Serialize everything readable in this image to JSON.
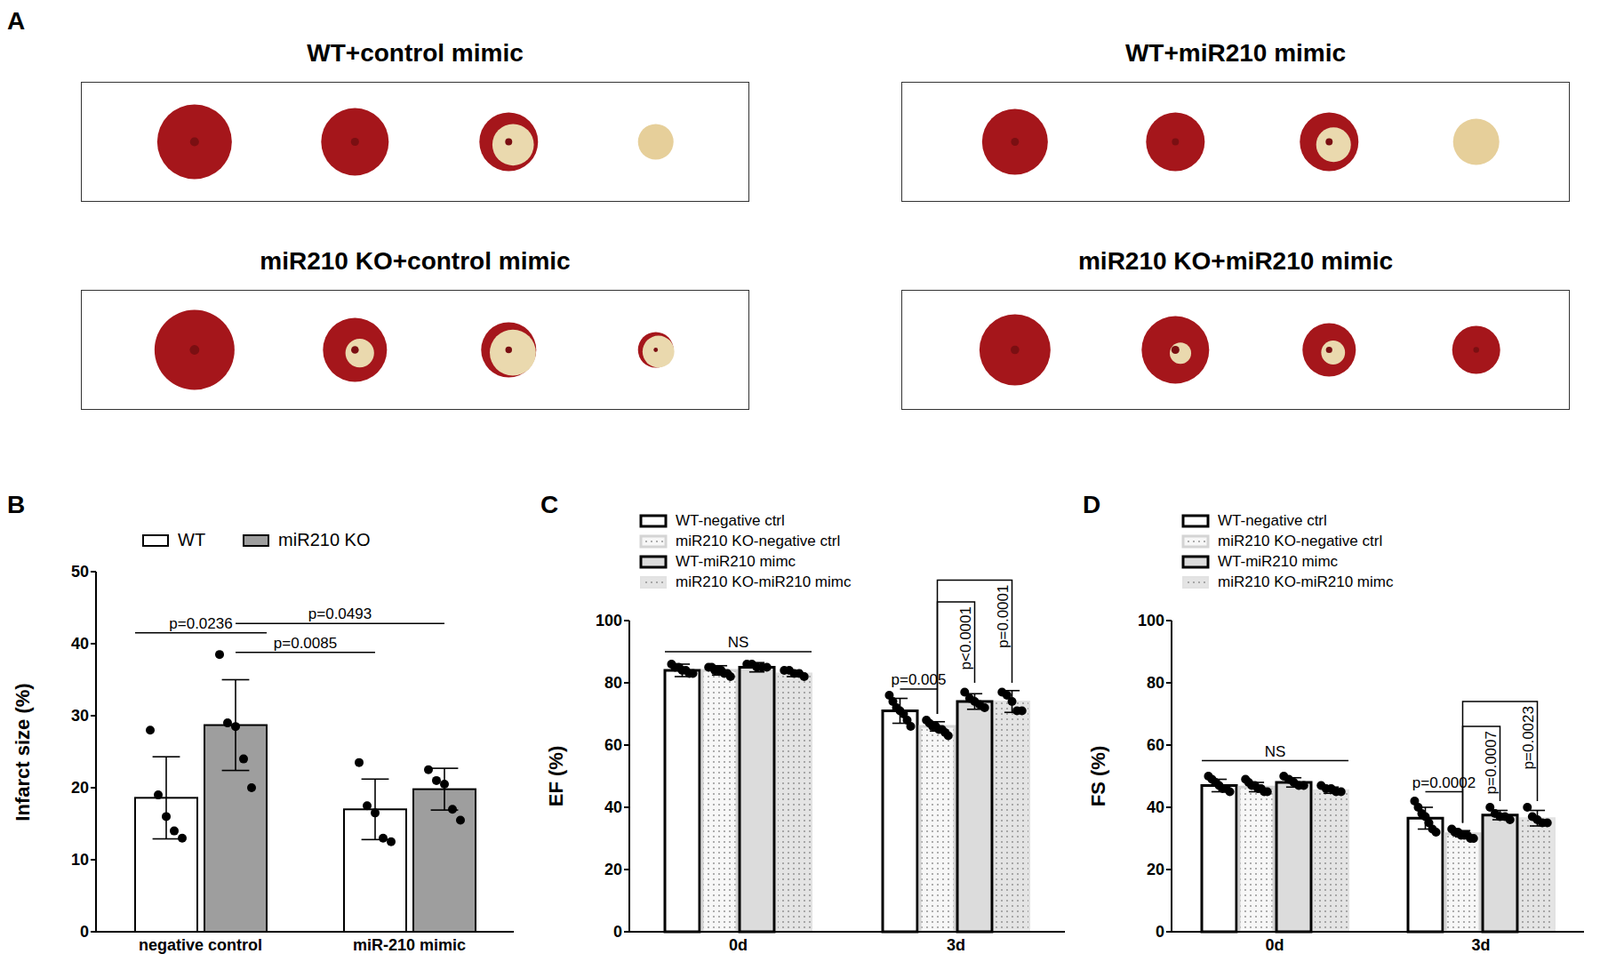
{
  "panel_A": {
    "panel_label": "A",
    "images": [
      {
        "title": "WT+control mimic"
      },
      {
        "title": "WT+miR210 mimic"
      },
      {
        "title": "miR210 KO+control mimic"
      },
      {
        "title": "miR210 KO+miR210 mimic"
      }
    ]
  },
  "chart_data": [
    {
      "panel_label": "B",
      "type": "bar",
      "y_label": "Infarct size (%)",
      "categories": [
        "negative control",
        "miR-210 mimic"
      ],
      "ylim": [
        0,
        50
      ],
      "yticks": [
        0,
        10,
        20,
        30,
        40,
        50
      ],
      "legend": "top",
      "series": [
        {
          "name": "WT",
          "color": "#ffffff",
          "values": [
            18.6,
            17.0
          ],
          "errors": [
            5.7,
            4.2
          ],
          "points": [
            [
              28,
              19,
              16,
              14,
              13
            ],
            [
              23.5,
              17.5,
              16.5,
              13,
              12.5
            ]
          ]
        },
        {
          "name": "miR210 KO",
          "color": "#9e9e9e",
          "values": [
            28.7,
            19.8
          ],
          "errors": [
            6.3,
            2.9
          ],
          "points": [
            [
              38.5,
              29,
              28.5,
              24,
              20
            ],
            [
              22.5,
              21,
              20.5,
              17,
              15.5
            ]
          ]
        }
      ],
      "annotations": [
        "p=0.0236",
        "p=0.0085",
        "p=0.0493"
      ]
    },
    {
      "panel_label": "C",
      "type": "bar",
      "y_label": "EF (%)",
      "categories": [
        "0d",
        "3d"
      ],
      "ylim": [
        0,
        100
      ],
      "yticks": [
        0,
        20,
        40,
        60,
        80,
        100
      ],
      "legend": "top",
      "series": [
        {
          "name": "WT-negative ctrl",
          "color": "#ffffff",
          "values": [
            84,
            71
          ],
          "errors": [
            2,
            4
          ],
          "points": [
            [
              86,
              85,
              85,
              84,
              84,
              83,
              83
            ],
            [
              76,
              74,
              72,
              71,
              70,
              68,
              66
            ]
          ]
        },
        {
          "name": "miR210 KO-negative ctrl",
          "color": "#f7f7f7",
          "values": [
            84,
            66
          ],
          "errors": [
            1.5,
            1.5
          ],
          "points": [
            [
              85,
              85,
              84,
              84,
              84,
              83,
              83,
              82
            ],
            [
              68,
              67,
              66,
              66,
              65,
              65,
              64,
              63
            ]
          ]
        },
        {
          "name": "WT-miR210 mimc",
          "color": "#dcdcdc",
          "values": [
            85,
            74
          ],
          "errors": [
            1.5,
            2.5
          ],
          "points": [
            [
              86,
              86,
              85,
              85,
              85
            ],
            [
              77,
              75,
              74,
              73,
              72
            ]
          ]
        },
        {
          "name": "miR210 KO-miR210 mimc",
          "color": "#e4e4e4",
          "values": [
            83,
            74
          ],
          "errors": [
            1,
            3.5
          ],
          "points": [
            [
              84,
              84,
              83,
              83,
              82
            ],
            [
              77,
              76,
              74,
              71,
              71
            ]
          ]
        }
      ],
      "annotations": [
        "NS",
        "p=0.005",
        "p<0.0001",
        "p=0.0001"
      ]
    },
    {
      "panel_label": "D",
      "type": "bar",
      "y_label": "FS (%)",
      "categories": [
        "0d",
        "3d"
      ],
      "ylim": [
        0,
        100
      ],
      "yticks": [
        0,
        20,
        40,
        60,
        80,
        100
      ],
      "legend": "top",
      "series": [
        {
          "name": "WT-negative ctrl",
          "color": "#ffffff",
          "values": [
            47,
            36.5
          ],
          "errors": [
            2,
            3.5
          ],
          "points": [
            [
              50,
              49,
              48,
              47,
              46,
              46,
              45
            ],
            [
              42,
              40,
              38,
              37,
              35,
              33,
              32
            ]
          ]
        },
        {
          "name": "miR210 KO-negative ctrl",
          "color": "#f7f7f7",
          "values": [
            46.5,
            31.5
          ],
          "errors": [
            1.5,
            1
          ],
          "points": [
            [
              49,
              48,
              47,
              47,
              46,
              46,
              45,
              45
            ],
            [
              33,
              32,
              32,
              31,
              31,
              31,
              30,
              30
            ]
          ]
        },
        {
          "name": "WT-miR210 mimc",
          "color": "#dcdcdc",
          "values": [
            48,
            37.5
          ],
          "errors": [
            1.5,
            1.5
          ],
          "points": [
            [
              50,
              49,
              48,
              47,
              47
            ],
            [
              40,
              38,
              37,
              37,
              36
            ]
          ]
        },
        {
          "name": "miR210 KO-miR210 mimc",
          "color": "#e4e4e4",
          "values": [
            45.5,
            36.5
          ],
          "errors": [
            1,
            2.5
          ],
          "points": [
            [
              47,
              46,
              46,
              45,
              45
            ],
            [
              40,
              37,
              36,
              35,
              35
            ]
          ]
        }
      ],
      "annotations": [
        "NS",
        "p=0.0002",
        "p=0.0007",
        "p=0.0023"
      ]
    }
  ]
}
